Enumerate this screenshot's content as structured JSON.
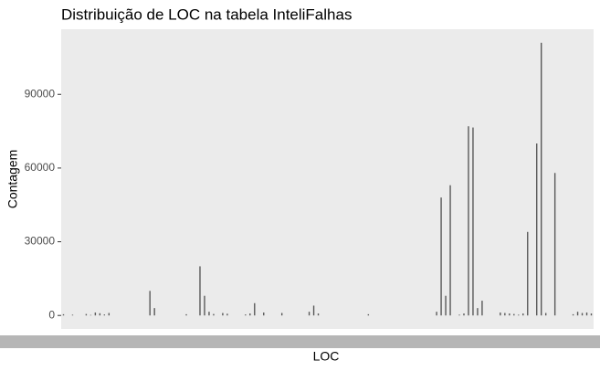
{
  "chart_data": {
    "type": "bar",
    "title": "Distribuição de LOC na tabela InteliFalhas",
    "x_label": "LOC",
    "y_label": "Contagem",
    "categories": [
      null,
      null,
      null,
      null,
      null,
      null,
      null,
      null,
      null,
      null,
      null,
      null,
      null,
      null,
      null,
      null,
      null,
      null,
      null,
      null,
      null,
      null,
      null,
      null,
      null,
      null,
      null,
      null,
      null,
      null,
      null,
      null,
      null,
      null,
      null,
      null,
      null,
      null,
      null,
      null,
      null,
      null,
      null,
      null,
      null,
      null,
      null,
      null,
      null,
      null,
      null,
      null,
      null,
      null,
      null,
      null,
      null,
      null,
      null,
      null,
      null,
      null,
      null,
      null,
      null,
      null,
      null,
      null,
      null,
      null,
      null,
      null,
      null,
      null,
      null,
      null,
      null,
      null,
      null,
      null,
      null,
      null,
      null,
      null,
      null,
      null,
      null,
      null,
      null,
      null,
      null,
      null,
      null,
      null,
      null,
      null,
      null,
      null,
      null,
      null,
      null,
      null,
      null,
      null,
      null,
      null,
      null,
      null,
      null,
      null,
      null,
      null,
      null,
      null,
      null,
      null,
      null
    ],
    "values": [
      500,
      0,
      300,
      0,
      0,
      600,
      200,
      1200,
      900,
      400,
      1000,
      0,
      0,
      0,
      0,
      0,
      0,
      0,
      0,
      10000,
      3000,
      0,
      0,
      0,
      0,
      0,
      0,
      500,
      0,
      0,
      20000,
      8000,
      1500,
      600,
      0,
      1000,
      700,
      0,
      0,
      0,
      400,
      800,
      5000,
      0,
      1200,
      0,
      0,
      0,
      1000,
      0,
      0,
      0,
      0,
      0,
      1500,
      4000,
      800,
      0,
      0,
      0,
      0,
      0,
      0,
      0,
      0,
      0,
      0,
      500,
      0,
      0,
      0,
      0,
      0,
      0,
      0,
      0,
      0,
      0,
      0,
      0,
      0,
      0,
      1500,
      48000,
      8000,
      53000,
      0,
      300,
      800,
      77000,
      76500,
      3000,
      6000,
      0,
      0,
      0,
      1200,
      1000,
      800,
      600,
      300,
      800,
      34000,
      0,
      70000,
      111000,
      1000,
      0,
      58000,
      0,
      0,
      0,
      500,
      1500,
      1000,
      1200,
      800
    ],
    "color": "#595959",
    "ylim": [
      -5500,
      116500
    ],
    "yticks": [
      0,
      30000,
      60000,
      90000
    ],
    "grid": false
  }
}
